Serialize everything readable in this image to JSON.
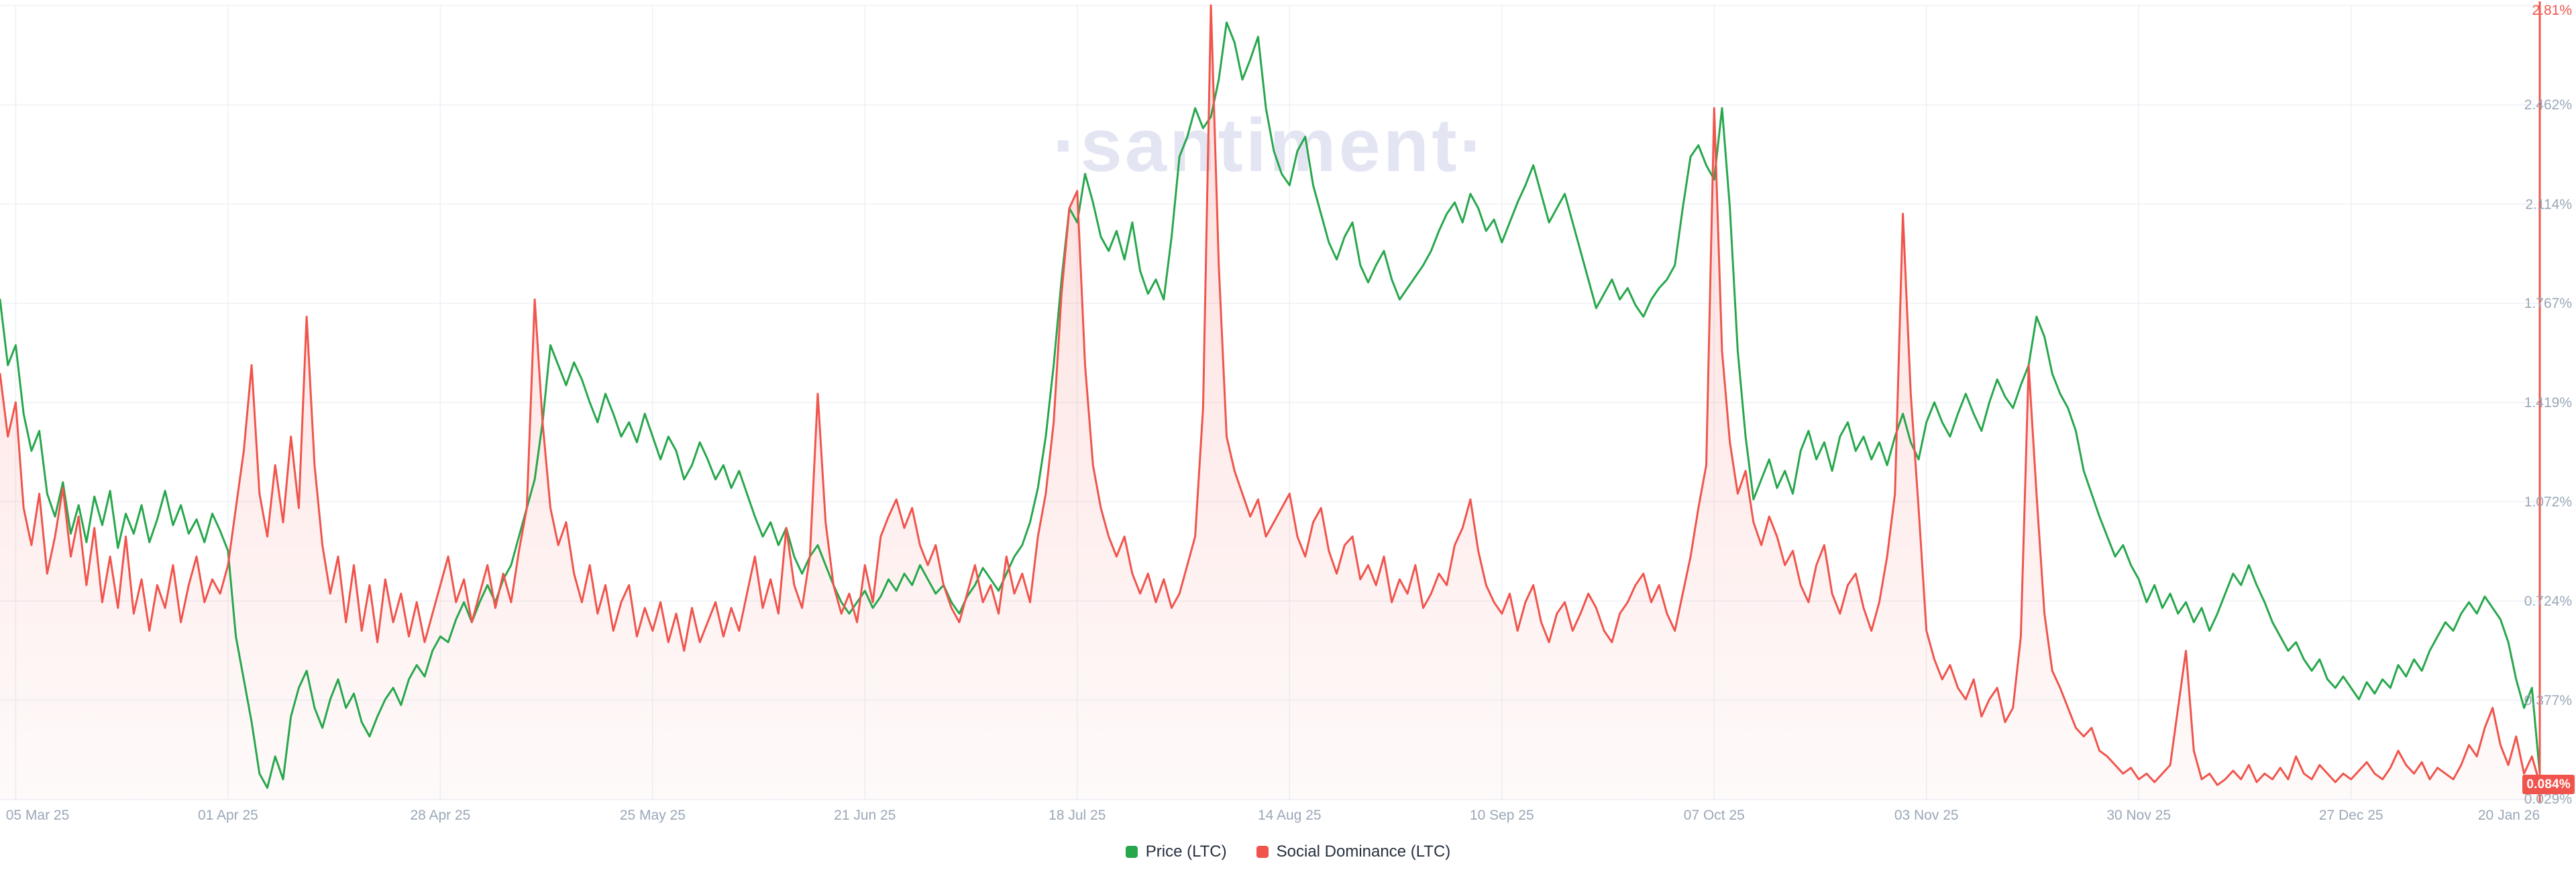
{
  "watermark": "·santiment·",
  "colors": {
    "price": "#27a74c",
    "social": "#f0544c",
    "grid": "#edf0f5",
    "axis_text": "#9aa7b8",
    "legend_text": "#25303e",
    "watermark": "#e3e5f3",
    "badge_bg": "#f0544c",
    "badge_text": "#ffffff"
  },
  "legend": {
    "position": "bottom-center",
    "items": [
      {
        "label": "Price (LTC)",
        "color": "#27a74c"
      },
      {
        "label": "Social Dominance (LTC)",
        "color": "#f0544c"
      }
    ]
  },
  "chart_data": {
    "type": "line",
    "description": "Daily time series chart, green Price (LTC) line and red Social Dominance (LTC) line with pink area fill, early Mar 2025 to 20 Jan 2026",
    "grid": true,
    "legend_position": "bottom-center",
    "x_ticks": {
      "days": [
        2,
        29,
        56,
        83,
        110,
        137,
        164,
        191,
        218,
        245,
        272,
        299,
        323
      ],
      "labels": [
        "05 Mar 25",
        "01 Apr 25",
        "28 Apr 25",
        "25 May 25",
        "21 Jun 25",
        "18 Jul 25",
        "14 Aug 25",
        "10 Sep 25",
        "07 Oct 25",
        "03 Nov 25",
        "30 Nov 25",
        "27 Dec 25",
        "20 Jan 26"
      ]
    },
    "y_axis_right": {
      "metric": "Social Dominance (LTC)",
      "unit": "%",
      "range": [
        0.029,
        2.81
      ],
      "ticks": [
        2.81,
        2.462,
        2.114,
        1.767,
        1.419,
        1.072,
        0.724,
        0.377,
        0.029
      ],
      "tick_labels": [
        "2.81%",
        "2.462%",
        "2.114%",
        "1.767%",
        "1.419%",
        "1.072%",
        "0.724%",
        "0.377%",
        "0.029%"
      ],
      "current_value": 0.084,
      "current_label": "0.084%"
    },
    "series": [
      {
        "name": "Price (LTC)",
        "style": "line",
        "color": "#27a74c",
        "note": "price axis not shown; values estimated on right-axis visual scale",
        "day_start": 0,
        "day_step": 1,
        "values": [
          1.78,
          1.55,
          1.62,
          1.38,
          1.25,
          1.32,
          1.1,
          1.02,
          1.14,
          0.96,
          1.06,
          0.93,
          1.09,
          0.99,
          1.11,
          0.91,
          1.03,
          0.96,
          1.06,
          0.93,
          1.01,
          1.11,
          0.99,
          1.06,
          0.96,
          1.01,
          0.93,
          1.03,
          0.97,
          0.9,
          0.6,
          0.45,
          0.3,
          0.12,
          0.07,
          0.18,
          0.1,
          0.32,
          0.42,
          0.48,
          0.35,
          0.28,
          0.38,
          0.45,
          0.35,
          0.4,
          0.3,
          0.25,
          0.32,
          0.38,
          0.42,
          0.36,
          0.45,
          0.5,
          0.46,
          0.55,
          0.6,
          0.58,
          0.66,
          0.72,
          0.65,
          0.72,
          0.78,
          0.72,
          0.8,
          0.85,
          0.95,
          1.05,
          1.15,
          1.35,
          1.62,
          1.55,
          1.48,
          1.56,
          1.5,
          1.42,
          1.35,
          1.45,
          1.38,
          1.3,
          1.35,
          1.28,
          1.38,
          1.3,
          1.22,
          1.3,
          1.25,
          1.15,
          1.2,
          1.28,
          1.22,
          1.15,
          1.2,
          1.12,
          1.18,
          1.1,
          1.02,
          0.95,
          1.0,
          0.92,
          0.98,
          0.88,
          0.82,
          0.88,
          0.92,
          0.85,
          0.78,
          0.72,
          0.68,
          0.72,
          0.76,
          0.7,
          0.74,
          0.8,
          0.76,
          0.82,
          0.78,
          0.85,
          0.8,
          0.75,
          0.78,
          0.72,
          0.68,
          0.74,
          0.78,
          0.84,
          0.8,
          0.76,
          0.82,
          0.88,
          0.92,
          1.0,
          1.12,
          1.3,
          1.55,
          1.85,
          2.1,
          2.05,
          2.22,
          2.12,
          2.0,
          1.95,
          2.02,
          1.92,
          2.05,
          1.88,
          1.8,
          1.85,
          1.78,
          2.0,
          2.28,
          2.35,
          2.45,
          2.38,
          2.42,
          2.55,
          2.75,
          2.68,
          2.55,
          2.62,
          2.7,
          2.45,
          2.3,
          2.22,
          2.18,
          2.3,
          2.35,
          2.18,
          2.08,
          1.98,
          1.92,
          2.0,
          2.05,
          1.9,
          1.84,
          1.9,
          1.95,
          1.85,
          1.78,
          1.82,
          1.86,
          1.9,
          1.95,
          2.02,
          2.08,
          2.12,
          2.05,
          2.15,
          2.1,
          2.02,
          2.06,
          1.98,
          2.05,
          2.12,
          2.18,
          2.25,
          2.15,
          2.05,
          2.1,
          2.15,
          2.05,
          1.95,
          1.85,
          1.75,
          1.8,
          1.85,
          1.78,
          1.82,
          1.76,
          1.72,
          1.78,
          1.82,
          1.85,
          1.9,
          2.1,
          2.28,
          2.32,
          2.25,
          2.2,
          2.45,
          2.1,
          1.6,
          1.3,
          1.08,
          1.15,
          1.22,
          1.12,
          1.18,
          1.1,
          1.25,
          1.32,
          1.22,
          1.28,
          1.18,
          1.3,
          1.35,
          1.25,
          1.3,
          1.22,
          1.28,
          1.2,
          1.3,
          1.38,
          1.28,
          1.22,
          1.35,
          1.42,
          1.35,
          1.3,
          1.38,
          1.45,
          1.38,
          1.32,
          1.42,
          1.5,
          1.44,
          1.4,
          1.48,
          1.55,
          1.72,
          1.65,
          1.52,
          1.45,
          1.4,
          1.32,
          1.18,
          1.1,
          1.02,
          0.95,
          0.88,
          0.92,
          0.85,
          0.8,
          0.72,
          0.78,
          0.7,
          0.75,
          0.68,
          0.72,
          0.65,
          0.7,
          0.62,
          0.68,
          0.75,
          0.82,
          0.78,
          0.85,
          0.78,
          0.72,
          0.65,
          0.6,
          0.55,
          0.58,
          0.52,
          0.48,
          0.52,
          0.45,
          0.42,
          0.46,
          0.42,
          0.38,
          0.44,
          0.4,
          0.45,
          0.42,
          0.5,
          0.46,
          0.52,
          0.48,
          0.55,
          0.6,
          0.65,
          0.62,
          0.68,
          0.72,
          0.68,
          0.74,
          0.7,
          0.66,
          0.58,
          0.45,
          0.35,
          0.42,
          0.12
        ]
      },
      {
        "name": "Social Dominance (LTC)",
        "style": "line+area",
        "color": "#f0544c",
        "unit": "%",
        "day_start": 0,
        "day_step": 1,
        "values": [
          1.52,
          1.3,
          1.42,
          1.05,
          0.92,
          1.1,
          0.82,
          0.95,
          1.12,
          0.88,
          1.02,
          0.78,
          0.98,
          0.72,
          0.88,
          0.7,
          0.95,
          0.68,
          0.8,
          0.62,
          0.78,
          0.7,
          0.85,
          0.65,
          0.78,
          0.88,
          0.72,
          0.8,
          0.75,
          0.85,
          1.05,
          1.25,
          1.55,
          1.1,
          0.95,
          1.2,
          1.0,
          1.3,
          1.05,
          1.72,
          1.2,
          0.92,
          0.75,
          0.88,
          0.65,
          0.85,
          0.62,
          0.78,
          0.58,
          0.8,
          0.65,
          0.75,
          0.6,
          0.72,
          0.58,
          0.68,
          0.78,
          0.88,
          0.72,
          0.8,
          0.65,
          0.75,
          0.85,
          0.7,
          0.82,
          0.72,
          0.9,
          1.05,
          1.78,
          1.35,
          1.05,
          0.92,
          1.0,
          0.82,
          0.72,
          0.85,
          0.68,
          0.78,
          0.62,
          0.72,
          0.78,
          0.6,
          0.7,
          0.62,
          0.72,
          0.58,
          0.68,
          0.55,
          0.7,
          0.58,
          0.65,
          0.72,
          0.6,
          0.7,
          0.62,
          0.75,
          0.88,
          0.7,
          0.8,
          0.68,
          0.98,
          0.78,
          0.7,
          0.88,
          1.45,
          1.0,
          0.78,
          0.68,
          0.75,
          0.65,
          0.85,
          0.72,
          0.95,
          1.02,
          1.08,
          0.98,
          1.05,
          0.92,
          0.85,
          0.92,
          0.78,
          0.7,
          0.65,
          0.75,
          0.85,
          0.72,
          0.78,
          0.68,
          0.88,
          0.75,
          0.82,
          0.72,
          0.95,
          1.1,
          1.35,
          1.8,
          2.1,
          2.16,
          1.55,
          1.2,
          1.05,
          0.95,
          0.88,
          0.95,
          0.82,
          0.75,
          0.82,
          0.72,
          0.8,
          0.7,
          0.75,
          0.85,
          0.95,
          1.4,
          2.81,
          1.9,
          1.3,
          1.18,
          1.1,
          1.02,
          1.08,
          0.95,
          1.0,
          1.05,
          1.1,
          0.95,
          0.88,
          1.0,
          1.05,
          0.9,
          0.82,
          0.92,
          0.95,
          0.8,
          0.85,
          0.78,
          0.88,
          0.72,
          0.8,
          0.75,
          0.85,
          0.7,
          0.75,
          0.82,
          0.78,
          0.92,
          0.98,
          1.08,
          0.9,
          0.78,
          0.72,
          0.68,
          0.75,
          0.62,
          0.72,
          0.78,
          0.65,
          0.58,
          0.68,
          0.72,
          0.62,
          0.68,
          0.75,
          0.7,
          0.62,
          0.58,
          0.68,
          0.72,
          0.78,
          0.82,
          0.72,
          0.78,
          0.68,
          0.62,
          0.75,
          0.88,
          1.05,
          1.2,
          2.45,
          1.6,
          1.28,
          1.1,
          1.18,
          1.0,
          0.92,
          1.02,
          0.95,
          0.85,
          0.9,
          0.78,
          0.72,
          0.85,
          0.92,
          0.75,
          0.68,
          0.78,
          0.82,
          0.7,
          0.62,
          0.72,
          0.88,
          1.1,
          2.08,
          1.45,
          1.05,
          0.62,
          0.52,
          0.45,
          0.5,
          0.42,
          0.38,
          0.45,
          0.32,
          0.38,
          0.42,
          0.3,
          0.35,
          0.6,
          1.55,
          1.1,
          0.68,
          0.48,
          0.42,
          0.35,
          0.28,
          0.25,
          0.28,
          0.2,
          0.18,
          0.15,
          0.12,
          0.14,
          0.1,
          0.12,
          0.09,
          0.12,
          0.15,
          0.35,
          0.55,
          0.2,
          0.1,
          0.12,
          0.08,
          0.1,
          0.13,
          0.1,
          0.15,
          0.09,
          0.12,
          0.1,
          0.14,
          0.1,
          0.18,
          0.12,
          0.1,
          0.15,
          0.12,
          0.09,
          0.12,
          0.1,
          0.13,
          0.16,
          0.12,
          0.1,
          0.14,
          0.2,
          0.15,
          0.12,
          0.16,
          0.1,
          0.14,
          0.12,
          0.1,
          0.15,
          0.22,
          0.18,
          0.28,
          0.35,
          0.22,
          0.15,
          0.25,
          0.12,
          0.18,
          0.084
        ]
      }
    ]
  }
}
